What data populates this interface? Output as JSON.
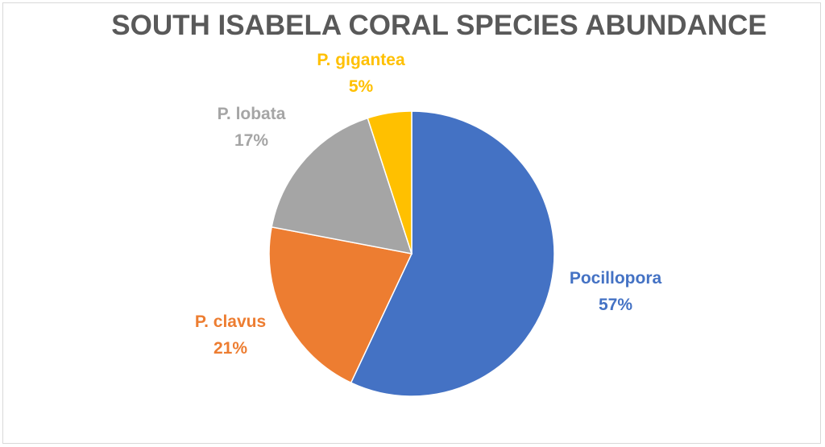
{
  "chart_data": {
    "type": "pie",
    "title": "SOUTH ISABELA CORAL SPECIES ABUNDANCE",
    "slices": [
      {
        "name": "Pocillopora",
        "value": 57,
        "label": "57%",
        "color": "#4472c4"
      },
      {
        "name": "P. clavus",
        "value": 21,
        "label": "21%",
        "color": "#ed7d31"
      },
      {
        "name": "P. lobata",
        "value": 17,
        "label": "17%",
        "color": "#a5a5a5"
      },
      {
        "name": "P. gigantea",
        "value": 5,
        "label": "5%",
        "color": "#ffc000"
      }
    ],
    "start": "12 o'clock",
    "direction": "clockwise",
    "legend": "none"
  }
}
